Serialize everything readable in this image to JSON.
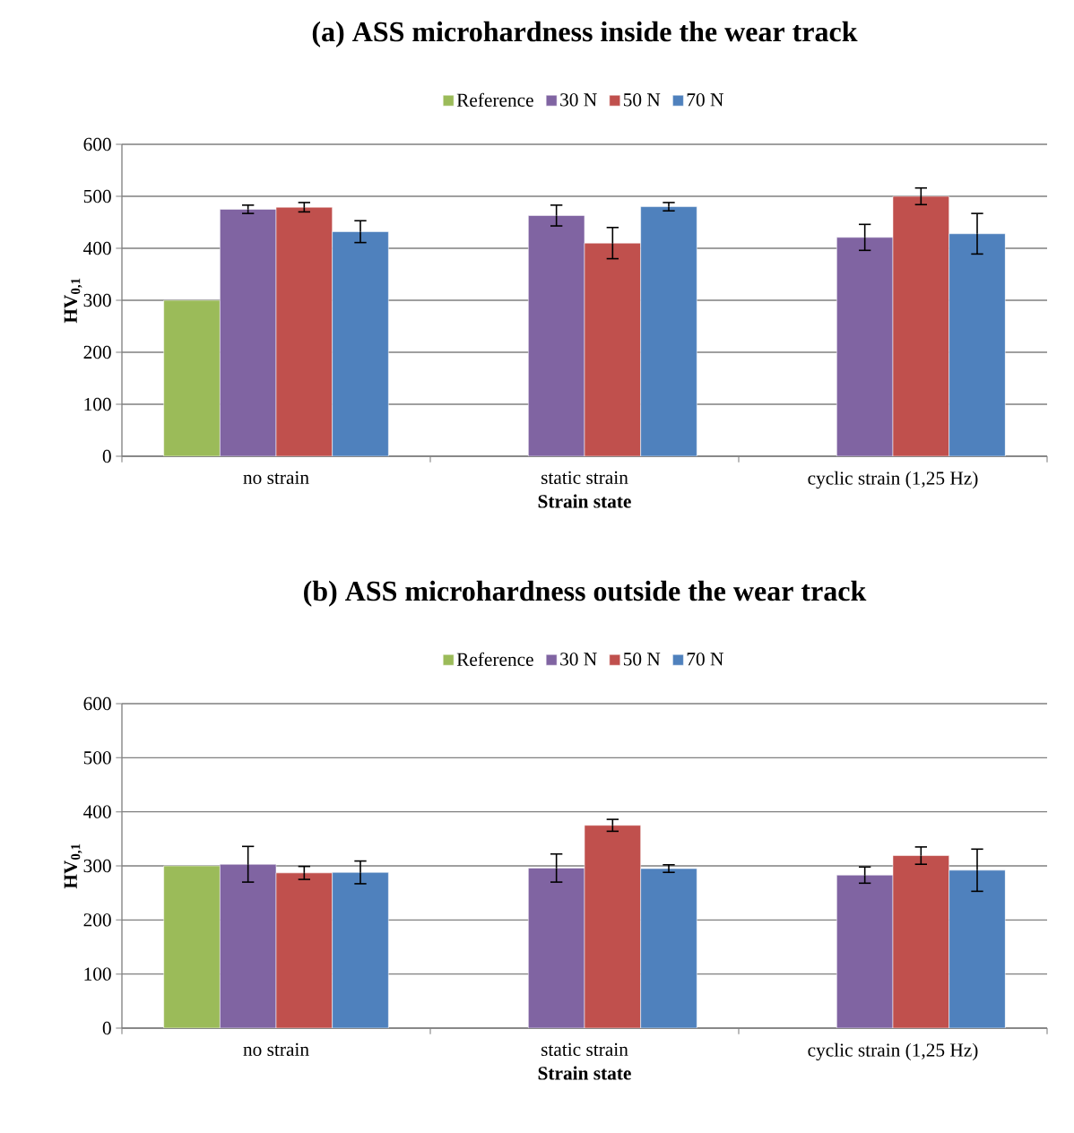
{
  "chart_data": [
    {
      "type": "bar",
      "title": "(a) ASS microhardness inside the wear track",
      "xlabel": "Strain state",
      "ylabel": "HV$_{0,1}$",
      "categories": [
        "no strain",
        "static strain",
        "cyclic strain (1,25 Hz)"
      ],
      "series": [
        {
          "name": "Reference",
          "color": "#9bbb59",
          "values": [
            300,
            null,
            null
          ],
          "errors": [
            null,
            null,
            null
          ]
        },
        {
          "name": "30 N",
          "color": "#8064a2",
          "values": [
            475,
            463,
            421
          ],
          "errors": [
            8,
            20,
            25
          ]
        },
        {
          "name": "50 N",
          "color": "#c0504d",
          "values": [
            479,
            410,
            500
          ],
          "errors": [
            9,
            30,
            16
          ]
        },
        {
          "name": "70 N",
          "color": "#4f81bd",
          "values": [
            432,
            480,
            428
          ],
          "errors": [
            21,
            8,
            39
          ]
        }
      ],
      "ylim": [
        0,
        600
      ],
      "yticks": [
        0,
        100,
        200,
        300,
        400,
        500,
        600
      ],
      "grid": "y",
      "legend": "top"
    },
    {
      "type": "bar",
      "title": "(b) ASS microhardness outside the wear track",
      "xlabel": "Strain state",
      "ylabel": "HV$_{0,1}$",
      "categories": [
        "no strain",
        "static strain",
        "cyclic strain (1,25 Hz)"
      ],
      "series": [
        {
          "name": "Reference",
          "color": "#9bbb59",
          "values": [
            300,
            null,
            null
          ],
          "errors": [
            null,
            null,
            null
          ]
        },
        {
          "name": "30 N",
          "color": "#8064a2",
          "values": [
            303,
            296,
            283
          ],
          "errors": [
            33,
            26,
            15
          ]
        },
        {
          "name": "50 N",
          "color": "#c0504d",
          "values": [
            287,
            375,
            319
          ],
          "errors": [
            12,
            11,
            16
          ]
        },
        {
          "name": "70 N",
          "color": "#4f81bd",
          "values": [
            288,
            295,
            292
          ],
          "errors": [
            21,
            7,
            39
          ]
        }
      ],
      "ylim": [
        0,
        600
      ],
      "yticks": [
        0,
        100,
        200,
        300,
        400,
        500,
        600
      ],
      "grid": "y",
      "legend": "top"
    }
  ]
}
